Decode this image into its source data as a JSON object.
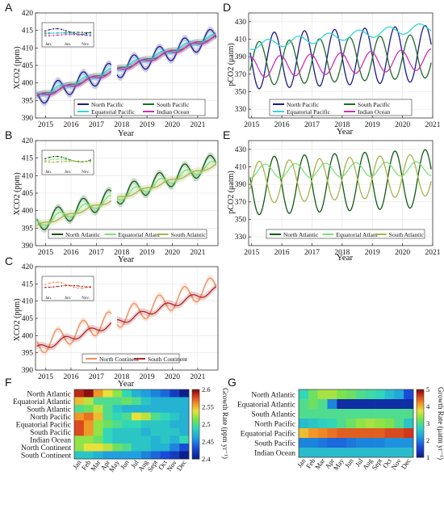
{
  "colors": {
    "north_pacific": "#1a1a8c",
    "south_pacific": "#1f6b2a",
    "equatorial_pacific": "#33d6d6",
    "indian_ocean": "#cc2fb8",
    "north_atlantic": "#0f5a12",
    "equatorial_atlant": "#7fe07a",
    "south_atlantic": "#a8b24a",
    "north_continent": "#f09060",
    "south_continent": "#b02828"
  },
  "panels": {
    "A": {
      "letter": "A",
      "ylabel": "XCO2 (ppm)",
      "xlabel": "Year",
      "inset_ticks": [
        "Jan.",
        "Jun.",
        "Nov."
      ],
      "legend": [
        "North Pacific",
        "South Pacific",
        "Equatorial Pacific",
        "Indian Ocean"
      ]
    },
    "B": {
      "letter": "B",
      "ylabel": "XCO2 (ppm)",
      "xlabel": "Year",
      "inset_ticks": [
        "Jan.",
        "Jun.",
        "Nov."
      ],
      "legend": [
        "North Atlantic",
        "Equatorial Atlant",
        "South Atlantic"
      ]
    },
    "C": {
      "letter": "C",
      "ylabel": "XCO2 (ppm)",
      "xlabel": "Year",
      "inset_ticks": [
        "Jan.",
        "Jun.",
        "Nov."
      ],
      "legend": [
        "North Continent",
        "South Continent"
      ]
    },
    "D": {
      "letter": "D",
      "ylabel": "pCO2 (μatm)",
      "xlabel": "Year",
      "legend": [
        "North Pacific",
        "South Pacific",
        "Equatorial Pacific",
        "Indian Ocean"
      ]
    },
    "E": {
      "letter": "E",
      "ylabel": "pCO2 (μatm)",
      "xlabel": "Year",
      "legend": [
        "North Atlantic",
        "Equatorial Atlant",
        "South Atlantic"
      ]
    },
    "F": {
      "letter": "F",
      "cbar_label": "Growth Rate (ppm yr⁻¹)"
    },
    "G": {
      "letter": "G",
      "cbar_label": "Growth Rate (μatm yr⁻¹)"
    }
  },
  "chart_data": [
    {
      "panel": "A",
      "type": "line",
      "xlim": [
        2014.6,
        2021.8
      ],
      "ylim": [
        390,
        420
      ],
      "xticks": [
        "2015",
        "2016",
        "2017",
        "2018",
        "2019",
        "2020",
        "2021"
      ],
      "yticks": [
        "390",
        "395",
        "400",
        "405",
        "410",
        "415",
        "420"
      ],
      "gap": [
        2017.6,
        2017.8
      ],
      "series": [
        {
          "name": "North Pacific",
          "color_key": "north_pacific",
          "start": 396.0,
          "slope": 2.42,
          "amp": 2.6,
          "phase": 0.22
        },
        {
          "name": "South Pacific",
          "color_key": "south_pacific",
          "start": 396.0,
          "slope": 2.42,
          "amp": 0.4,
          "phase": 0.6
        },
        {
          "name": "Equatorial Pacific",
          "color_key": "equatorial_pacific",
          "start": 396.3,
          "slope": 2.4,
          "amp": 0.8,
          "phase": 0.3
        },
        {
          "name": "Indian Ocean",
          "color_key": "indian_ocean",
          "start": 395.8,
          "slope": 2.42,
          "amp": 0.6,
          "phase": 0.5
        }
      ]
    },
    {
      "panel": "B",
      "type": "line",
      "xlim": [
        2014.6,
        2021.8
      ],
      "ylim": [
        390,
        420
      ],
      "xticks": [
        "2015",
        "2016",
        "2017",
        "2018",
        "2019",
        "2020",
        "2021"
      ],
      "yticks": [
        "390",
        "395",
        "400",
        "405",
        "410",
        "415",
        "420"
      ],
      "gap": [
        2017.6,
        2017.8
      ],
      "series": [
        {
          "name": "North Atlantic",
          "color_key": "north_atlantic",
          "start": 396.3,
          "slope": 2.45,
          "amp": 2.6,
          "phase": 0.22
        },
        {
          "name": "Equatorial Atlant",
          "color_key": "equatorial_atlant",
          "start": 396.0,
          "slope": 2.42,
          "amp": 1.2,
          "phase": 0.28
        },
        {
          "name": "South Atlantic",
          "color_key": "south_atlantic",
          "start": 395.5,
          "slope": 2.45,
          "amp": 0.4,
          "phase": 0.6
        }
      ]
    },
    {
      "panel": "C",
      "type": "line",
      "xlim": [
        2014.6,
        2021.8
      ],
      "ylim": [
        390,
        420
      ],
      "xticks": [
        "2015",
        "2016",
        "2017",
        "2018",
        "2019",
        "2020",
        "2021"
      ],
      "yticks": [
        "390",
        "395",
        "400",
        "405",
        "410",
        "415",
        "420"
      ],
      "gap": [
        2017.6,
        2017.8
      ],
      "series": [
        {
          "name": "North Continent",
          "color_key": "north_continent",
          "start": 397.0,
          "slope": 2.45,
          "amp": 2.8,
          "phase": 0.22
        },
        {
          "name": "South Continent",
          "color_key": "south_continent",
          "start": 396.0,
          "slope": 2.42,
          "amp": 0.9,
          "phase": 0.5
        }
      ]
    },
    {
      "panel": "D",
      "type": "line",
      "xlim": [
        2014.9,
        2021.0
      ],
      "ylim": [
        320,
        440
      ],
      "xticks": [
        "2015",
        "2016",
        "2017",
        "2018",
        "2019",
        "2020",
        "2021"
      ],
      "yticks": [
        "330",
        "350",
        "370",
        "390",
        "410",
        "430"
      ],
      "series": [
        {
          "name": "North Pacific",
          "color_key": "north_pacific",
          "mean": 385,
          "trend": 1.5,
          "amp": 32,
          "phase": 0.5
        },
        {
          "name": "South Pacific",
          "color_key": "south_pacific",
          "mean": 382,
          "trend": 1.5,
          "amp": 25,
          "phase": 0.0
        },
        {
          "name": "Equatorial Pacific",
          "color_key": "equatorial_pacific",
          "mean": 403,
          "trend": 3.5,
          "amp": 5,
          "phase": 0.3
        },
        {
          "name": "Indian Ocean",
          "color_key": "indian_ocean",
          "mean": 378,
          "trend": 1.5,
          "amp": 12,
          "phase": 0.7
        }
      ]
    },
    {
      "panel": "E",
      "type": "line",
      "xlim": [
        2014.9,
        2021.0
      ],
      "ylim": [
        320,
        440
      ],
      "xticks": [
        "2015",
        "2016",
        "2017",
        "2018",
        "2019",
        "2020",
        "2021"
      ],
      "yticks": [
        "330",
        "350",
        "370",
        "390",
        "410",
        "430"
      ],
      "series": [
        {
          "name": "North Atlantic",
          "color_key": "north_atlantic",
          "mean": 388,
          "trend": 1.5,
          "amp": 33,
          "phase": 0.5
        },
        {
          "name": "Equatorial Atlant",
          "color_key": "equatorial_atlant",
          "mean": 405,
          "trend": 0.5,
          "amp": 8,
          "phase": 0.2
        },
        {
          "name": "South Atlantic",
          "color_key": "south_atlantic",
          "mean": 392,
          "trend": 1.5,
          "amp": 24,
          "phase": 0.0
        }
      ]
    },
    {
      "panel": "F",
      "type": "heatmap",
      "rows": [
        "North Atlantic",
        "Equatorial Atlantic",
        "South Atlantic",
        "North Pacific",
        "Equatorial Pacific",
        "South Pacific",
        "Indian Ocean",
        "North Continent",
        "South Continent"
      ],
      "cols": [
        "Jan",
        "Feb",
        "Mar",
        "Apr",
        "May",
        "Jun",
        "Jul",
        "Aug",
        "Sept",
        "Oct",
        "Nov",
        "Dec"
      ],
      "colorbar": {
        "min": 2.4,
        "max": 2.6,
        "ticks": [
          "2.4",
          "2.45",
          "2.5",
          "2.55",
          "2.6"
        ]
      },
      "values": [
        [
          2.59,
          2.6,
          2.56,
          2.54,
          2.52,
          2.49,
          2.47,
          2.46,
          2.45,
          2.44,
          2.42,
          2.4
        ],
        [
          2.55,
          2.53,
          2.5,
          2.5,
          2.5,
          2.51,
          2.5,
          2.48,
          2.47,
          2.47,
          2.47,
          2.47
        ],
        [
          2.5,
          2.51,
          2.53,
          2.5,
          2.48,
          2.47,
          2.47,
          2.47,
          2.47,
          2.47,
          2.47,
          2.47
        ],
        [
          2.56,
          2.57,
          2.55,
          2.5,
          2.49,
          2.5,
          2.54,
          2.53,
          2.5,
          2.49,
          2.48,
          2.47
        ],
        [
          2.58,
          2.56,
          2.52,
          2.51,
          2.5,
          2.49,
          2.49,
          2.48,
          2.48,
          2.48,
          2.47,
          2.47
        ],
        [
          2.58,
          2.56,
          2.52,
          2.49,
          2.48,
          2.48,
          2.48,
          2.47,
          2.48,
          2.48,
          2.48,
          2.47
        ],
        [
          2.52,
          2.52,
          2.51,
          2.49,
          2.48,
          2.48,
          2.48,
          2.48,
          2.47,
          2.48,
          2.47,
          2.49
        ],
        [
          2.52,
          2.54,
          2.54,
          2.53,
          2.51,
          2.5,
          2.48,
          2.48,
          2.47,
          2.47,
          2.45,
          2.43
        ],
        [
          2.48,
          2.48,
          2.47,
          2.46,
          2.46,
          2.46,
          2.46,
          2.45,
          2.44,
          2.43,
          2.42,
          2.4
        ]
      ]
    },
    {
      "panel": "G",
      "type": "heatmap",
      "rows": [
        "North Atlantic",
        "Equatorial Atlantic",
        "South Atlantic",
        "North Pacific",
        "Equatorial Pacific",
        "South Pacific",
        "Indian Ocean"
      ],
      "cols": [
        "Jan",
        "Feb",
        "Mar",
        "Apr",
        "May",
        "Jun",
        "Jul",
        "Aug",
        "Sept",
        "Oct",
        "Nov",
        "Dec"
      ],
      "colorbar": {
        "min": 1,
        "max": 5,
        "ticks": [
          "1",
          "2",
          "3",
          "4",
          "5"
        ]
      },
      "values": [
        [
          2.8,
          3.2,
          3.5,
          3.5,
          3.3,
          3.2,
          3.0,
          2.9,
          2.8,
          2.5,
          2.3,
          1.6
        ],
        [
          3.0,
          3.2,
          3.0,
          2.0,
          1.2,
          1.2,
          1.2,
          1.2,
          1.2,
          1.2,
          1.2,
          1.2
        ],
        [
          3.0,
          3.0,
          3.0,
          3.0,
          3.0,
          3.0,
          3.0,
          3.0,
          3.0,
          3.0,
          3.0,
          3.0
        ],
        [
          2.5,
          2.6,
          2.7,
          2.8,
          3.0,
          3.2,
          3.4,
          3.5,
          3.4,
          3.3,
          3.0,
          2.6
        ],
        [
          4.0,
          4.2,
          4.3,
          4.4,
          4.5,
          4.5,
          4.5,
          4.5,
          4.5,
          4.6,
          4.6,
          4.7
        ],
        [
          2.0,
          2.0,
          1.9,
          1.8,
          1.8,
          1.9,
          2.0,
          2.0,
          2.0,
          2.1,
          2.1,
          2.1
        ],
        [
          2.5,
          2.5,
          2.5,
          2.5,
          2.5,
          2.5,
          2.5,
          2.5,
          2.5,
          2.5,
          2.5,
          2.5
        ]
      ]
    }
  ]
}
